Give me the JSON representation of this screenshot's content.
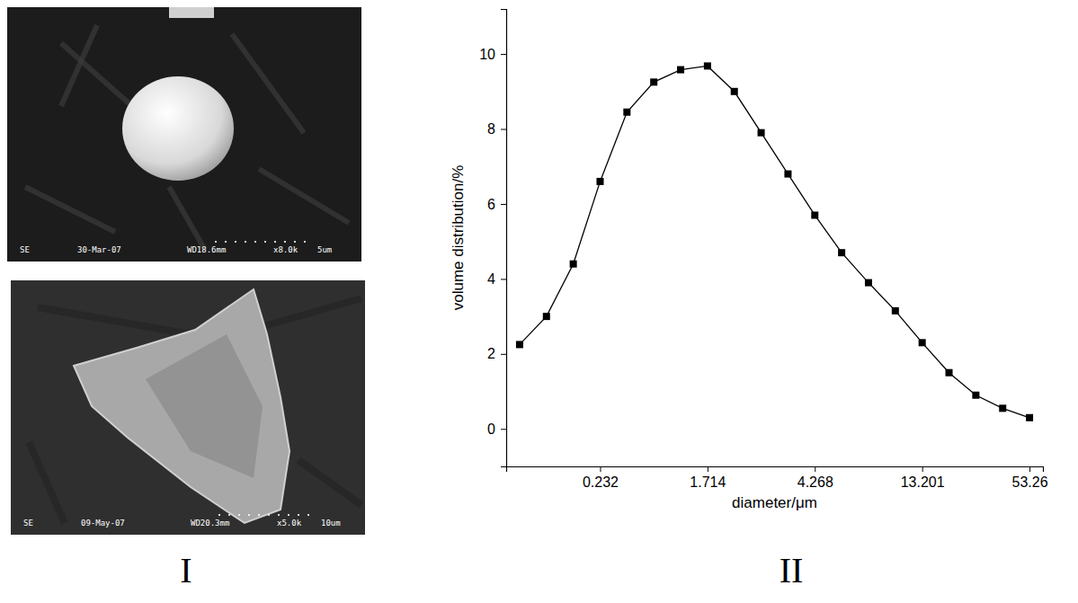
{
  "panel_labels": [
    "I",
    "II"
  ],
  "images": [
    {
      "labels": [
        "SE",
        "30-Mar-07",
        "WD18.6mm",
        "x8.0k",
        "5um"
      ]
    },
    {
      "labels": [
        "SE",
        "09-May-07",
        "WD20.3mm",
        "x5.0k",
        "10um"
      ]
    }
  ],
  "chart_data": {
    "type": "line",
    "x_label": "diameter/μm",
    "y_label": "volume distribution/%",
    "categories": [
      null,
      null,
      null,
      "0.232",
      null,
      null,
      null,
      "1.714",
      null,
      null,
      null,
      "4.268",
      null,
      null,
      null,
      "13.201",
      null,
      null,
      null,
      "53.26"
    ],
    "values": [
      2.25,
      3.0,
      4.4,
      6.6,
      8.45,
      9.25,
      9.58,
      9.68,
      9.0,
      7.9,
      6.8,
      5.7,
      4.7,
      3.9,
      3.15,
      2.3,
      1.5,
      0.9,
      0.55,
      0.3
    ],
    "color": "#000000",
    "marker": "square",
    "ylim": [
      -1,
      11.2
    ],
    "yticks": [
      0,
      2,
      4,
      6,
      8,
      10
    ],
    "grid": false
  }
}
